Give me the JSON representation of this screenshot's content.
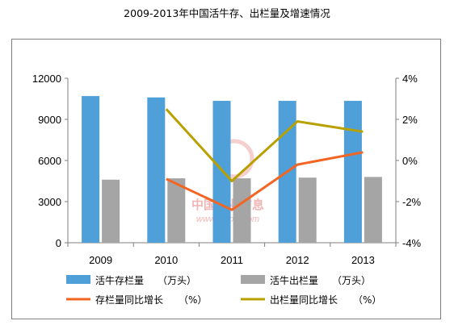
{
  "chart_data": {
    "type": "bar",
    "title": "2009-2013年中国活牛存、出栏量及增速情况",
    "categories": [
      "2009",
      "2010",
      "2011",
      "2012",
      "2013"
    ],
    "left_axis": {
      "ylim": [
        0,
        12000
      ],
      "ticks": [
        "0",
        "3000",
        "6000",
        "9000",
        "12000"
      ]
    },
    "right_axis": {
      "ylim": [
        -4,
        4
      ],
      "ticks": [
        "-4%",
        "-2%",
        "0%",
        "2%",
        "4%"
      ]
    },
    "bar_series": [
      {
        "name": "活牛存栏量",
        "unit": "（万头）",
        "color": "#4f9fd8",
        "values": [
          10700,
          10600,
          10350,
          10350,
          10350
        ]
      },
      {
        "name": "活牛出栏量",
        "unit": "（万头）",
        "color": "#a5a5a5",
        "values": [
          4600,
          4700,
          4700,
          4750,
          4800
        ]
      }
    ],
    "line_series": [
      {
        "name": "存栏量同比增长",
        "unit": "（%）",
        "color": "#f26522",
        "values": [
          null,
          -0.9,
          -2.4,
          -0.2,
          0.4
        ]
      },
      {
        "name": "出栏量同比增长",
        "unit": "（%）",
        "color": "#b8a000",
        "values": [
          null,
          2.5,
          -1.0,
          1.9,
          1.4
        ]
      }
    ],
    "legend_position": "bottom",
    "grid": false
  },
  "watermark": {
    "text": "中国产业信息",
    "url": "www.chyxx.com"
  }
}
